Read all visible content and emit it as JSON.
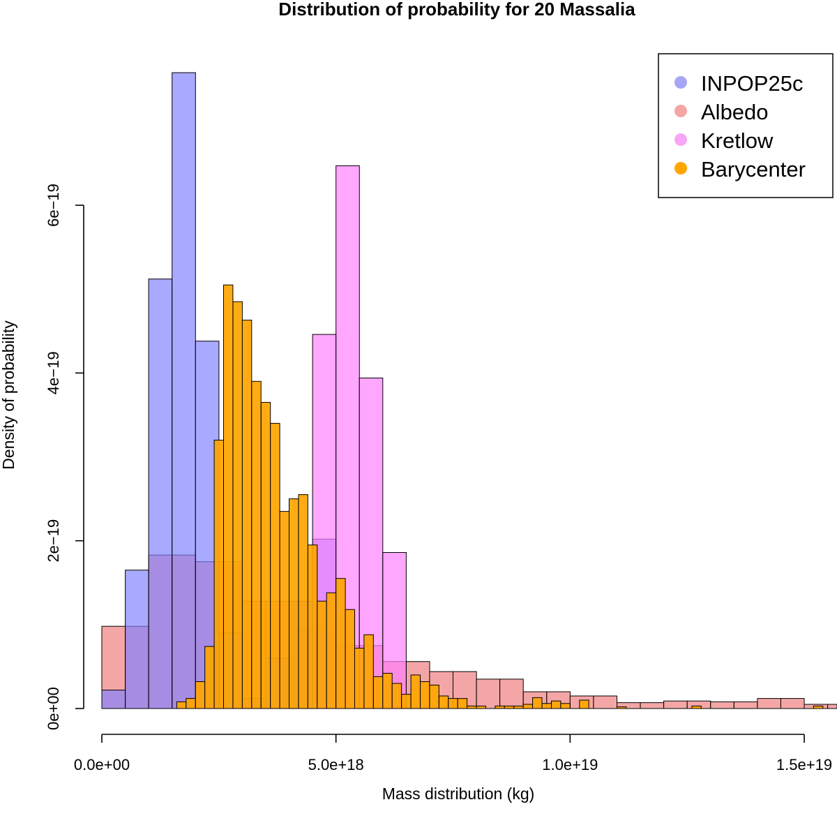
{
  "chart_data": {
    "type": "histogram",
    "title": "Distribution of probability for 20 Massalia",
    "xlabel": "Mass distribution (kg)",
    "ylabel": "Density of probability",
    "xlim": [
      0,
      1.56e+19
    ],
    "ylim": [
      0,
      6e-19
    ],
    "x_ticks": [
      0,
      5e+18,
      1e+19,
      1.5e+19
    ],
    "x_tick_labels": [
      "0.0e+00",
      "5.0e+18",
      "1.0e+19",
      "1.5e+19"
    ],
    "y_ticks": [
      0,
      2e-19,
      4e-19,
      6e-19
    ],
    "y_tick_labels": [
      "0e+00",
      "2e−19",
      "4e−19",
      "6e−19"
    ],
    "grid": false,
    "legend_position": "top-right",
    "series": [
      {
        "name": "Albedo",
        "color": "#F08080",
        "opacity": 0.7,
        "bin_width": 5e+17,
        "bins": [
          [
            0,
            9.8e-20
          ],
          [
            5e+17,
            9.8e-20
          ],
          [
            1e+18,
            1.83e-19
          ],
          [
            1.5e+18,
            1.83e-19
          ],
          [
            2e+18,
            1.75e-19
          ],
          [
            2.5e+18,
            1.75e-19
          ],
          [
            3e+18,
            1.28e-19
          ],
          [
            3.5e+18,
            1.28e-19
          ],
          [
            4e+18,
            9.5e-20
          ],
          [
            4.5e+18,
            9.5e-20
          ],
          [
            5e+18,
            7.5e-20
          ],
          [
            5.5e+18,
            7.5e-20
          ],
          [
            6e+18,
            5.6e-20
          ],
          [
            6.5e+18,
            5.6e-20
          ],
          [
            7e+18,
            4.4e-20
          ],
          [
            7.5e+18,
            4.4e-20
          ],
          [
            8e+18,
            3.5e-20
          ],
          [
            8.5e+18,
            3.5e-20
          ],
          [
            9e+18,
            2e-20
          ],
          [
            9.5e+18,
            2e-20
          ],
          [
            1e+19,
            1.5e-20
          ],
          [
            1.05e+19,
            1.5e-20
          ],
          [
            1.1e+19,
            7e-21
          ],
          [
            1.15e+19,
            7e-21
          ],
          [
            1.2e+19,
            9e-21
          ],
          [
            1.25e+19,
            9e-21
          ],
          [
            1.3e+19,
            8e-21
          ],
          [
            1.35e+19,
            8e-21
          ],
          [
            1.4e+19,
            1.2e-20
          ],
          [
            1.45e+19,
            1.2e-20
          ],
          [
            1.5e+19,
            5e-21
          ],
          [
            1.55e+19,
            5e-21
          ]
        ]
      },
      {
        "name": "INPOP25c",
        "color": "#8080FF",
        "opacity": 0.68,
        "bin_width": 5e+17,
        "bins": [
          [
            0,
            2.2e-20
          ],
          [
            5e+17,
            1.65e-19
          ],
          [
            1e+18,
            5.12e-19
          ],
          [
            1.5e+18,
            7.58e-19
          ],
          [
            2e+18,
            4.38e-19
          ],
          [
            2.5e+18,
            9e-20
          ],
          [
            3e+18,
            1.2e-20
          ],
          [
            3.5e+18,
            6e-20
          ],
          [
            4e+18,
            1.28e-19
          ],
          [
            4.5e+18,
            2.02e-19
          ]
        ]
      },
      {
        "name": "Kretlow",
        "color": "#FF80FF",
        "opacity": 0.7,
        "bin_width": 5e+17,
        "bins": [
          [
            4.5e+18,
            4.46e-19
          ],
          [
            5e+18,
            6.47e-19
          ],
          [
            5.5e+18,
            3.94e-19
          ],
          [
            6e+18,
            1.86e-19
          ]
        ]
      },
      {
        "name": "Barycenter",
        "color": "#FFA500",
        "opacity": 0.92,
        "bin_width": 2e+17,
        "bins": [
          [
            1.6e+18,
            8e-21
          ],
          [
            1.8e+18,
            1.2e-20
          ],
          [
            2e+18,
            3.2e-20
          ],
          [
            2.2e+18,
            7.4e-20
          ],
          [
            2.4e+18,
            3.2e-19
          ],
          [
            2.6e+18,
            5.05e-19
          ],
          [
            2.8e+18,
            4.85e-19
          ],
          [
            3e+18,
            4.63e-19
          ],
          [
            3.2e+18,
            3.9e-19
          ],
          [
            3.4e+18,
            3.65e-19
          ],
          [
            3.6e+18,
            3.4e-19
          ],
          [
            3.8e+18,
            2.35e-19
          ],
          [
            4e+18,
            2.5e-19
          ],
          [
            4.2e+18,
            2.55e-19
          ],
          [
            4.4e+18,
            1.95e-19
          ],
          [
            4.6e+18,
            1.28e-19
          ],
          [
            4.8e+18,
            1.38e-19
          ],
          [
            5e+18,
            1.55e-19
          ],
          [
            5.2e+18,
            1.18e-19
          ],
          [
            5.4e+18,
            7.2e-20
          ],
          [
            5.6e+18,
            8.8e-20
          ],
          [
            5.8e+18,
            3.8e-20
          ],
          [
            6e+18,
            4.2e-20
          ],
          [
            6.2e+18,
            3e-20
          ],
          [
            6.4e+18,
            1.7e-20
          ],
          [
            6.6e+18,
            4e-20
          ],
          [
            6.8e+18,
            3.2e-20
          ],
          [
            7e+18,
            2.8e-20
          ],
          [
            7.2e+18,
            1.5e-20
          ],
          [
            7.4e+18,
            1.2e-20
          ],
          [
            7.6e+18,
            1.2e-20
          ],
          [
            7.8e+18,
            3e-21
          ],
          [
            8e+18,
            3e-21
          ],
          [
            8.4e+18,
            3e-21
          ],
          [
            8.6e+18,
            3e-21
          ],
          [
            8.8e+18,
            3e-21
          ],
          [
            9e+18,
            5e-21
          ],
          [
            9.2e+18,
            1.3e-20
          ],
          [
            9.4e+18,
            6e-21
          ],
          [
            9.6e+18,
            9e-21
          ],
          [
            9.8e+18,
            6e-21
          ],
          [
            1.02e+19,
            1e-20
          ],
          [
            1.1e+19,
            2e-21
          ],
          [
            1.26e+19,
            3e-21
          ],
          [
            1.52e+19,
            3e-21
          ]
        ]
      }
    ],
    "legend": [
      {
        "label": "INPOP25c",
        "color": "#A6A6F5"
      },
      {
        "label": "Albedo",
        "color": "#F4A6A6"
      },
      {
        "label": "Kretlow",
        "color": "#F7A6F7"
      },
      {
        "label": "Barycenter",
        "color": "#FFA500"
      }
    ]
  }
}
